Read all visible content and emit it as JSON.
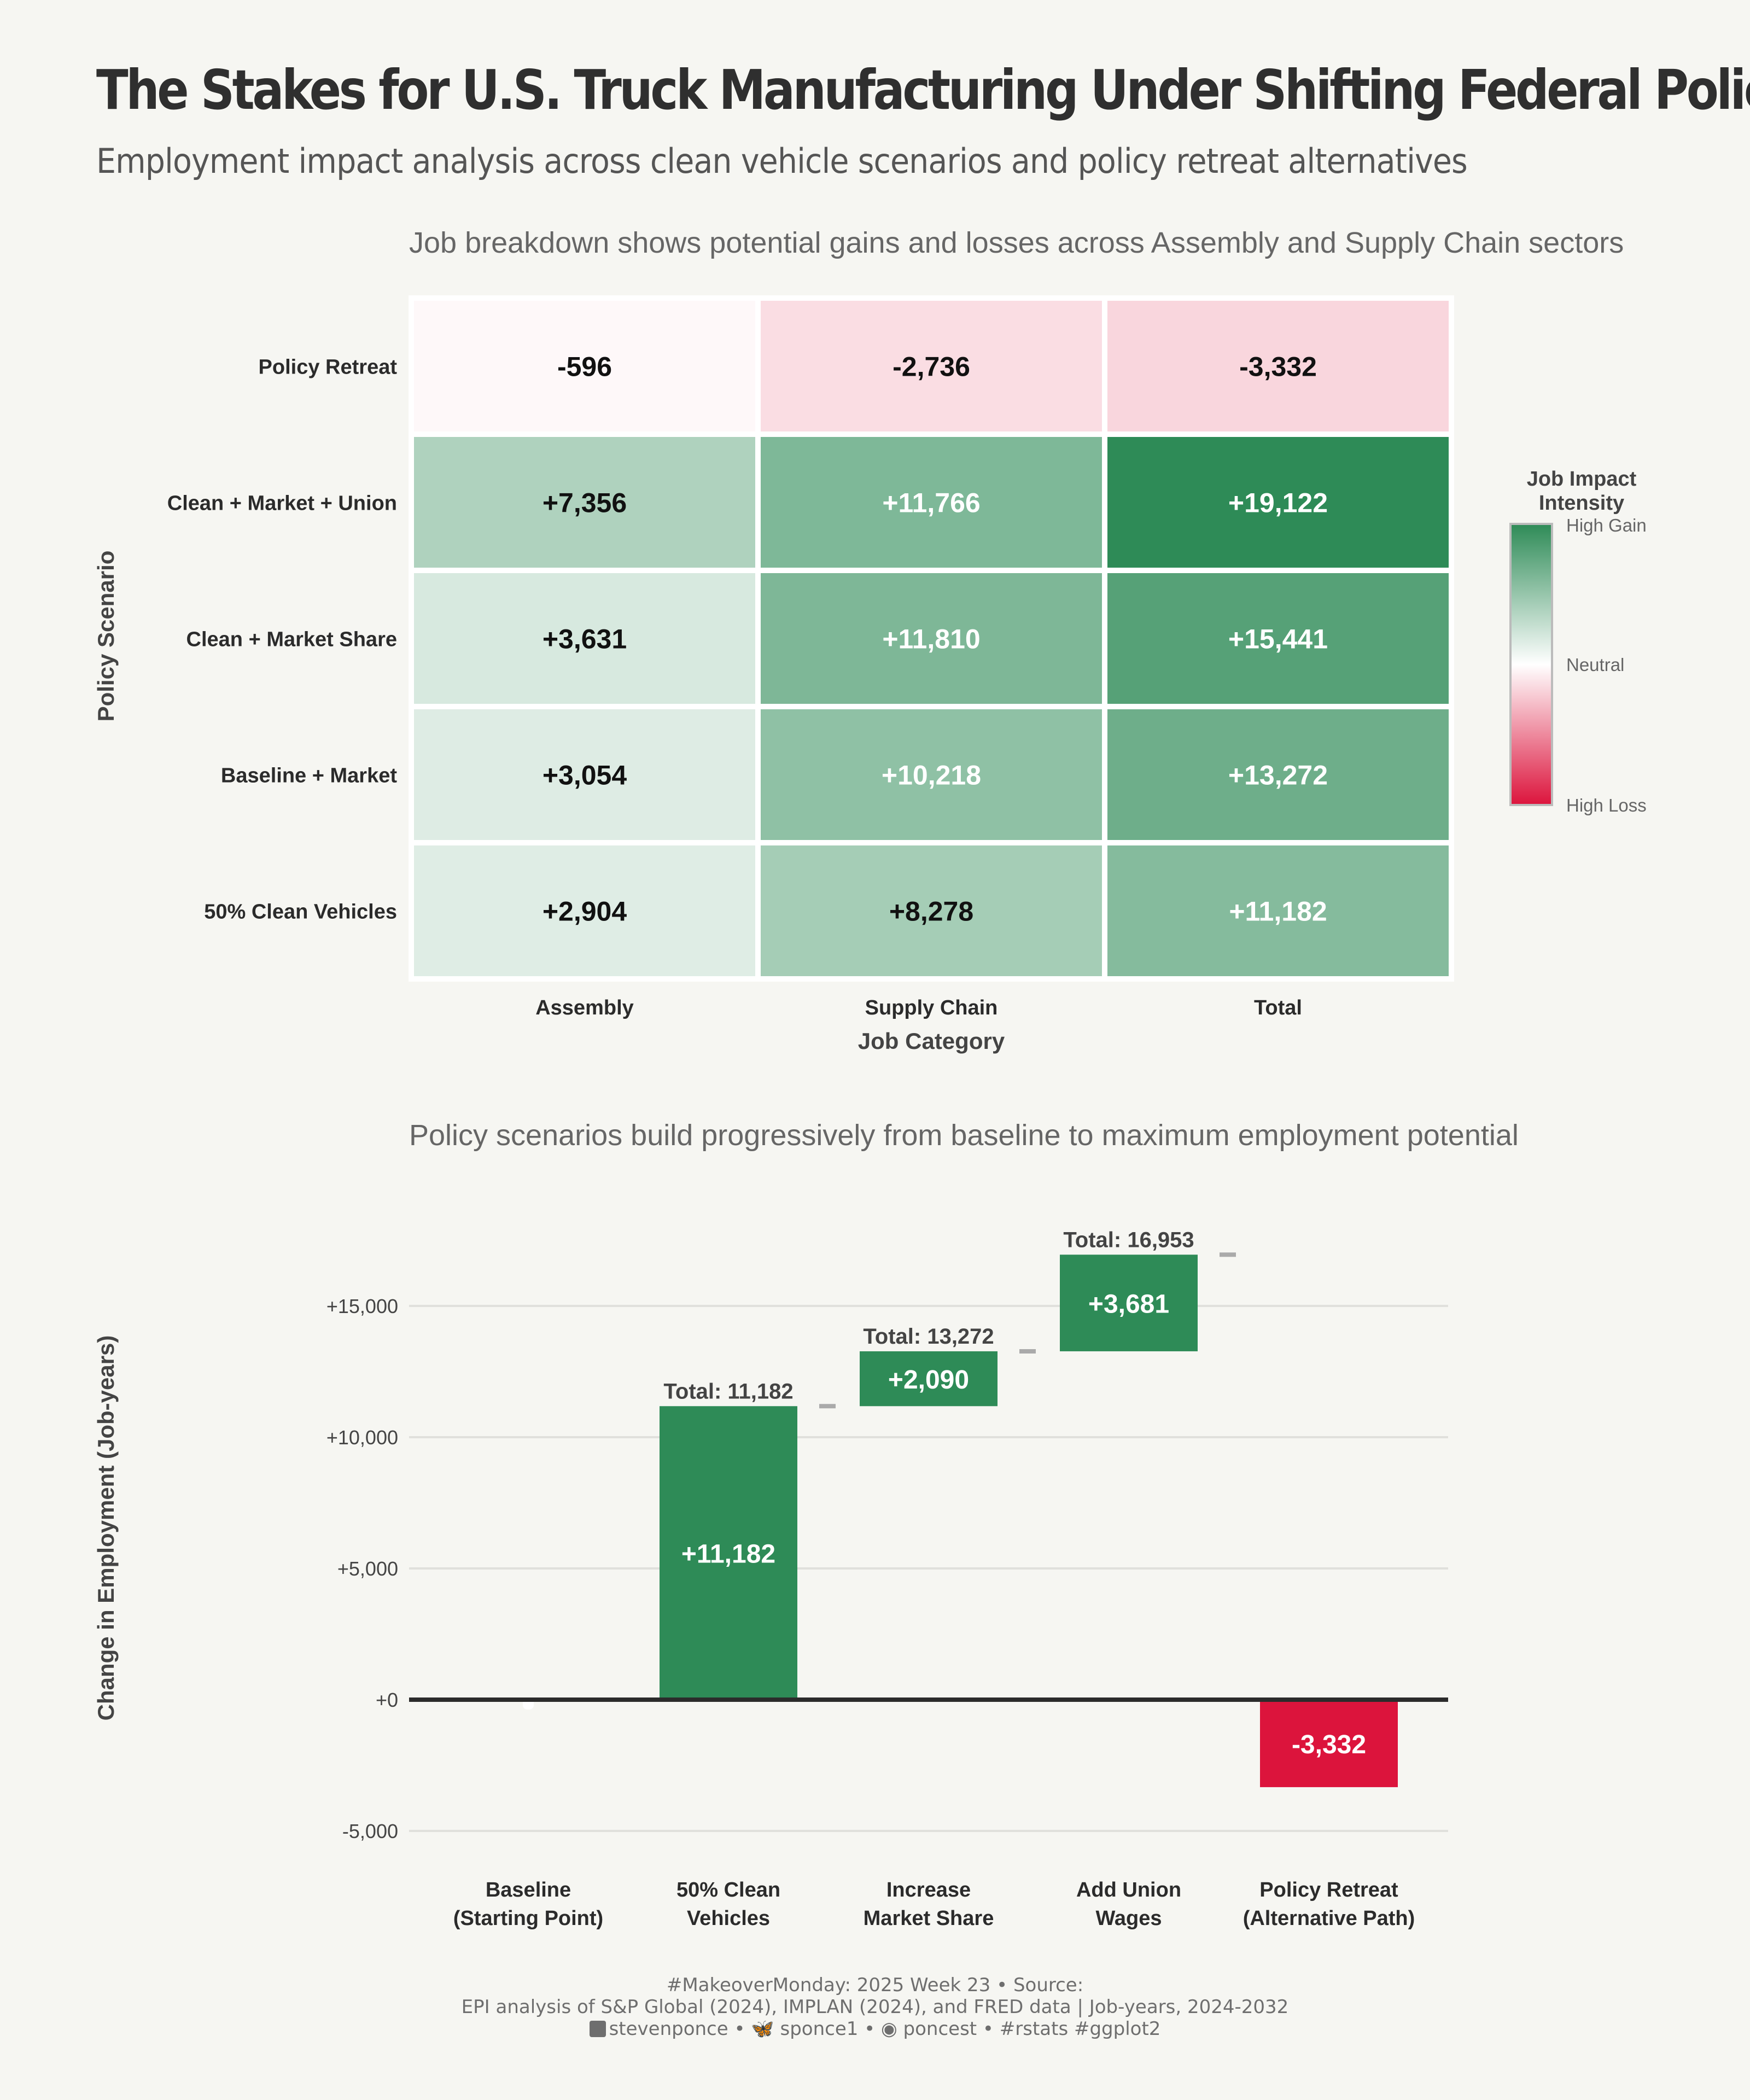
{
  "title": "The Stakes for U.S. Truck Manufacturing Under Shifting Federal Policy",
  "subtitle": "Employment impact analysis across clean vehicle scenarios and policy retreat alternatives",
  "chart_data": [
    {
      "type": "heatmap",
      "title": "Job breakdown shows potential gains and losses across Assembly and Supply Chain sectors",
      "xlabel": "Job Category",
      "ylabel": "Policy Scenario",
      "columns": [
        "Assembly",
        "Supply Chain",
        "Total"
      ],
      "rows": [
        "Policy Retreat",
        "Clean + Market + Union",
        "Clean + Market Share",
        "Baseline + Market",
        "50% Clean Vehicles"
      ],
      "values": [
        [
          -596,
          -2736,
          -3332
        ],
        [
          7356,
          11766,
          19122
        ],
        [
          3631,
          11810,
          15441
        ],
        [
          3054,
          10218,
          13272
        ],
        [
          2904,
          8278,
          11182
        ]
      ],
      "labels": [
        [
          "-596",
          "-2,736",
          "-3,332"
        ],
        [
          "+7,356",
          "+11,766",
          "+19,122"
        ],
        [
          "+3,631",
          "+11,810",
          "+15,441"
        ],
        [
          "+3,054",
          "+10,218",
          "+13,272"
        ],
        [
          "+2,904",
          "+8,278",
          "+11,182"
        ]
      ],
      "legend": {
        "title_lines": [
          "Job Impact",
          "Intensity"
        ],
        "high_label": "High Gain",
        "mid_label": "Neutral",
        "low_label": "High Loss",
        "placement": "right",
        "colors": {
          "gain": "#2e8b57",
          "neutral": "#ffffff",
          "loss": "#dc143c"
        }
      }
    },
    {
      "type": "bar",
      "subtype": "waterfall",
      "title": "Policy scenarios build progressively from baseline to maximum employment potential",
      "xlabel": "",
      "ylabel": "Change in Employment (Job-years)",
      "ylim": [
        -6000,
        19000
      ],
      "yticks": [
        -5000,
        0,
        5000,
        10000,
        15000
      ],
      "ytick_labels": [
        "-5,000",
        "+0",
        "+5,000",
        "+10,000",
        "+15,000"
      ],
      "steps": [
        {
          "category_lines": [
            "Baseline",
            "(Starting Point)"
          ],
          "start": 0,
          "end": 0,
          "label": "",
          "total_label": ""
        },
        {
          "category_lines": [
            "50% Clean",
            "Vehicles"
          ],
          "start": 0,
          "end": 11182,
          "label": "+11,182",
          "total_label": "Total: 11,182"
        },
        {
          "category_lines": [
            "Increase",
            "Market Share"
          ],
          "start": 11182,
          "end": 13272,
          "label": "+2,090",
          "total_label": "Total: 13,272"
        },
        {
          "category_lines": [
            "Add Union",
            "Wages"
          ],
          "start": 13272,
          "end": 16953,
          "label": "+3,681",
          "total_label": "Total: 16,953"
        },
        {
          "category_lines": [
            "Policy Retreat",
            "(Alternative Path)"
          ],
          "start": 0,
          "end": -3332,
          "label": "-3,332",
          "total_label": ""
        }
      ],
      "colors": {
        "positive": "#2e8b57",
        "negative": "#dc143c",
        "connector": "#aaaaaa"
      }
    }
  ],
  "caption": {
    "line1": "#MakeoverMonday: 2025 Week 23 • Source:",
    "line2": "EPI analysis of S&P Global (2024), IMPLAN (2024), and FRED data |  Job-years, 2024-2032",
    "line3": "stevenponce • 🦋 sponce1 • ◉ poncest • #rstats #ggplot2"
  }
}
